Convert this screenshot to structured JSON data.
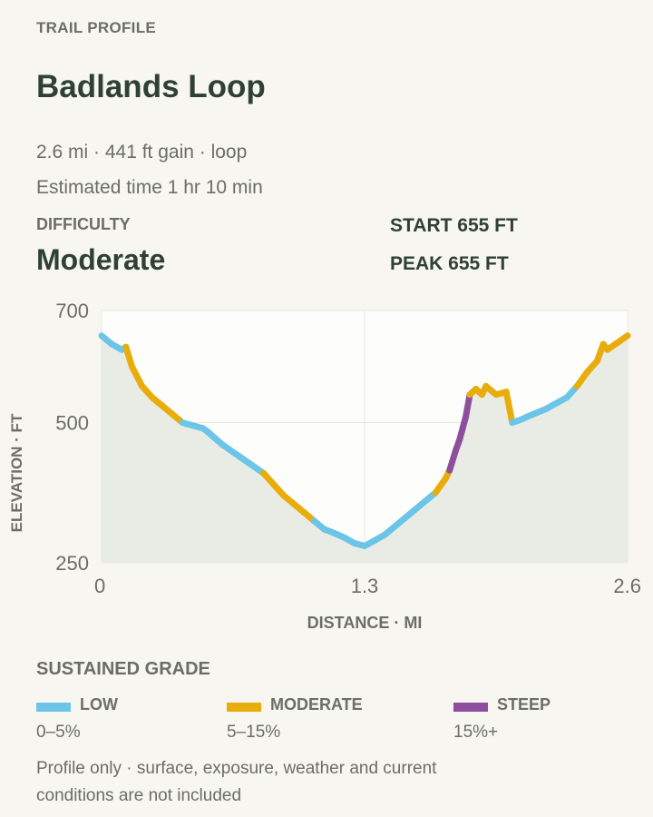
{
  "header": {
    "kicker": "TRAIL PROFILE",
    "title": "Badlands Loop",
    "summary": "2.6 mi · 441 ft gain · loop",
    "time": "Estimated time 1 hr 10 min"
  },
  "difficulty": {
    "label": "DIFFICULTY",
    "value": "Moderate"
  },
  "stats": {
    "start": "START 655 FT",
    "peak": "PEAK 655 FT"
  },
  "chart_data": {
    "type": "line",
    "xlabel": "DISTANCE · MI",
    "ylabel": "ELEVATION · FT",
    "xlim": [
      0,
      2.6
    ],
    "ylim": [
      250,
      700
    ],
    "x_ticks": [
      "0",
      "1.3",
      "2.6"
    ],
    "y_ticks": [
      "700",
      "500",
      "250"
    ],
    "grid": true,
    "series": [
      {
        "x": [
          0,
          0.05,
          0.1,
          0.12,
          0.15,
          0.2,
          0.25,
          0.3,
          0.35,
          0.4,
          0.5,
          0.52,
          0.6,
          0.7,
          0.8,
          0.85,
          0.9,
          0.95,
          1.0,
          1.05,
          1.1,
          1.15,
          1.2,
          1.25,
          1.3,
          1.35,
          1.4,
          1.45,
          1.5,
          1.55,
          1.6,
          1.65,
          1.68,
          1.7,
          1.72,
          1.75,
          1.77,
          1.8,
          1.82,
          1.85,
          1.88,
          1.9,
          1.95,
          2.0,
          2.03,
          2.07,
          2.1,
          2.2,
          2.3,
          2.35,
          2.4,
          2.45,
          2.48,
          2.5,
          2.6
        ],
        "y": [
          655,
          640,
          630,
          635,
          600,
          565,
          545,
          530,
          515,
          500,
          490,
          485,
          460,
          435,
          410,
          390,
          370,
          355,
          340,
          325,
          310,
          303,
          295,
          285,
          280,
          290,
          300,
          315,
          330,
          345,
          360,
          375,
          390,
          400,
          415,
          450,
          470,
          510,
          550,
          560,
          550,
          565,
          550,
          555,
          500,
          505,
          510,
          525,
          545,
          565,
          590,
          610,
          640,
          630,
          655
        ],
        "grade": [
          "low",
          "low",
          "low",
          "moderate",
          "moderate",
          "moderate",
          "moderate",
          "moderate",
          "moderate",
          "low",
          "low",
          "low",
          "low",
          "low",
          "moderate",
          "moderate",
          "moderate",
          "moderate",
          "moderate",
          "low",
          "low",
          "low",
          "low",
          "low",
          "low",
          "low",
          "low",
          "low",
          "low",
          "low",
          "low",
          "moderate",
          "moderate",
          "moderate",
          "steep",
          "steep",
          "steep",
          "steep",
          "moderate",
          "moderate",
          "moderate",
          "moderate",
          "moderate",
          "moderate",
          "low",
          "low",
          "low",
          "low",
          "low",
          "moderate",
          "moderate",
          "moderate",
          "moderate",
          "moderate"
        ]
      }
    ]
  },
  "legend": {
    "title": "SUSTAINED GRADE",
    "items": [
      {
        "name": "LOW",
        "range": "0–5%",
        "color": "#6cc4e8"
      },
      {
        "name": "MODERATE",
        "range": "5–15%",
        "color": "#e8ad0a"
      },
      {
        "name": "STEEP",
        "range": "15%+",
        "color": "#8d4e9e"
      }
    ]
  },
  "footnote": "Profile only · surface, exposure, weather and current conditions are not included",
  "colors": {
    "fill": "#e8ece4",
    "plot_bg": "#fdfdfb",
    "grid": "#e6e6e1"
  }
}
